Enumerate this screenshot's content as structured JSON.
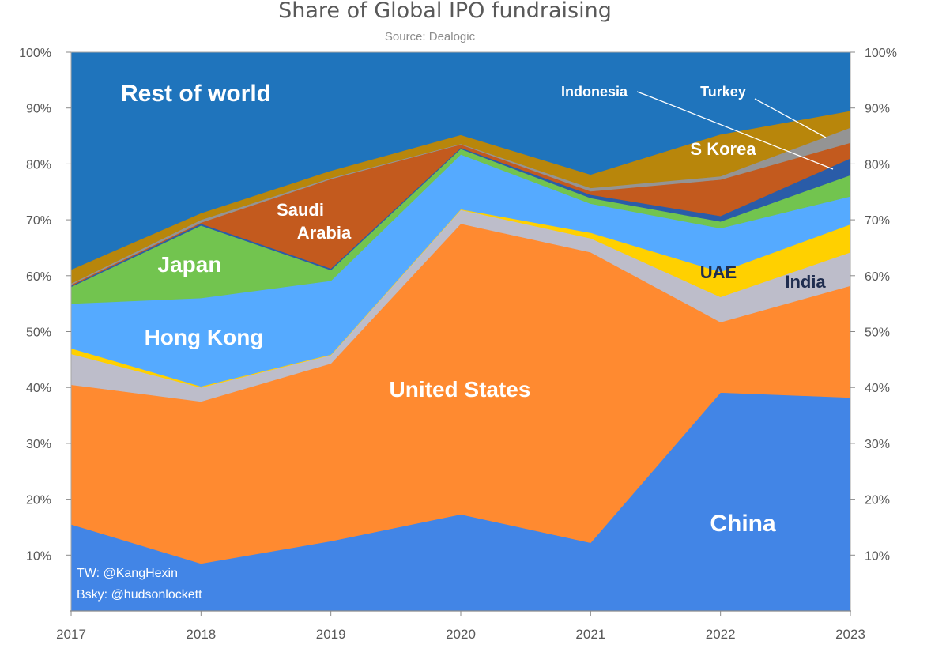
{
  "chart_data": {
    "type": "area",
    "stacked": true,
    "title": "Share of Global IPO fundraising",
    "subtitle": "Source: Dealogic",
    "x": [
      "2017",
      "2018",
      "2019",
      "2020",
      "2021",
      "2022",
      "2023"
    ],
    "ylim": [
      0,
      100
    ],
    "ytick_labels": [
      "10%",
      "20%",
      "30%",
      "40%",
      "50%",
      "60%",
      "70%",
      "80%",
      "90%",
      "100%"
    ],
    "right_ytick_labels": [
      "10%",
      "20%",
      "30%",
      "40%",
      "50%",
      "60%",
      "70%",
      "80%",
      "90%",
      "100%"
    ],
    "series": [
      {
        "name": "China",
        "color": "#4285e6",
        "label_color": "#ffffff",
        "values": [
          15.5,
          8.5,
          12.5,
          17.3,
          12.2,
          39.1,
          38.2
        ]
      },
      {
        "name": "United States",
        "color": "#ff8a30",
        "label_color": "#ffffff",
        "values": [
          25.0,
          29.0,
          31.8,
          52.0,
          52.0,
          12.6,
          20.0
        ]
      },
      {
        "name": "India",
        "color": "#bdbdca",
        "label_color": "#1f2d4f",
        "values": [
          5.5,
          2.5,
          1.5,
          2.5,
          2.5,
          4.5,
          6.0
        ]
      },
      {
        "name": "UAE",
        "color": "#ffd000",
        "label_color": "#1f2d4f",
        "values": [
          1.0,
          0.2,
          0.1,
          0.1,
          1.0,
          4.5,
          5.0
        ]
      },
      {
        "name": "Hong Kong",
        "color": "#55aaff",
        "label_color": "#ffffff",
        "values": [
          8.0,
          15.8,
          13.2,
          9.8,
          5.2,
          7.8,
          5.0
        ]
      },
      {
        "name": "Japan",
        "color": "#72c44f",
        "label_color": "#ffffff",
        "values": [
          3.0,
          13.0,
          1.9,
          1.0,
          1.0,
          1.2,
          3.8
        ]
      },
      {
        "name": "Indonesia",
        "color": "#2a5ca8",
        "label_color": "#ffffff",
        "values": [
          0.2,
          0.3,
          0.3,
          0.2,
          0.6,
          1.0,
          3.0
        ]
      },
      {
        "name": "Saudi Arabia",
        "color": "#c35a1e",
        "label_color": "#ffffff",
        "values": [
          0.2,
          0.2,
          16.0,
          0.6,
          0.6,
          6.5,
          2.8
        ]
      },
      {
        "name": "Turkey",
        "color": "#949494",
        "label_color": "#ffffff",
        "values": [
          0.2,
          0.5,
          0.2,
          0.1,
          0.6,
          0.6,
          2.7
        ]
      },
      {
        "name": "S Korea",
        "color": "#b8860b",
        "label_color": "#ffffff",
        "values": [
          2.5,
          1.2,
          1.3,
          1.6,
          2.4,
          7.5,
          3.0
        ]
      },
      {
        "name": "Rest of world",
        "color": "#1f74bc",
        "label_color": "#ffffff",
        "values": [
          38.9,
          28.8,
          21.2,
          14.8,
          21.9,
          14.7,
          10.5
        ]
      }
    ],
    "labels": [
      {
        "series": "Rest of world",
        "text": "Rest of world"
      },
      {
        "series": "Indonesia",
        "text": "Indonesia"
      },
      {
        "series": "Turkey",
        "text": "Turkey"
      },
      {
        "series": "S Korea",
        "text": "S Korea"
      },
      {
        "series": "Saudi Arabia",
        "text": "Saudi"
      },
      {
        "series": "Saudi Arabia",
        "text": "Arabia"
      },
      {
        "series": "Japan",
        "text": "Japan"
      },
      {
        "series": "Hong Kong",
        "text": "Hong Kong"
      },
      {
        "series": "United States",
        "text": "United States"
      },
      {
        "series": "UAE",
        "text": "UAE"
      },
      {
        "series": "India",
        "text": "India"
      },
      {
        "series": "China",
        "text": "China"
      }
    ],
    "credit": [
      "TW: @KangHexin",
      "Bsky: @hudsonlockett"
    ]
  }
}
